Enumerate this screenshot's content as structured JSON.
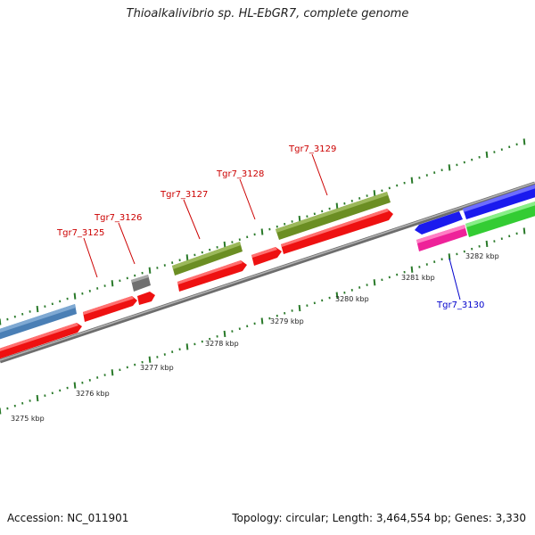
{
  "title": "Thioalkalivibrio sp. HL-EbGR7, complete genome",
  "footer": {
    "accession": "Accession: NC_011901",
    "topology": "Topology: circular; Length: 3,464,554 bp; Genes: 3,330"
  },
  "ruler": {
    "unit": "kbp",
    "ticks": [
      {
        "label": "3275 kbp",
        "kbp": 3275
      },
      {
        "label": "3276 kbp",
        "kbp": 3276
      },
      {
        "label": "3277 kbp",
        "kbp": 3277
      },
      {
        "label": "3278 kbp",
        "kbp": 3278
      },
      {
        "label": "3279 kbp",
        "kbp": 3279
      },
      {
        "label": "3280 kbp",
        "kbp": 3280
      },
      {
        "label": "3281 kbp",
        "kbp": 3281
      },
      {
        "label": "3282 kbp",
        "kbp": 3282
      }
    ]
  },
  "colors": {
    "backbone": "#8a8a8a",
    "cds": "#ee1111",
    "operon": "#6b8e23",
    "blue_track": "#1a1aee",
    "steel_track": "#4a7fb5",
    "rna_gray": "#707070",
    "magenta": "#ee2299",
    "green_track": "#33cc33",
    "tick": "#2a7a2a",
    "label_red": "#cc0000",
    "label_blue": "#0000cc"
  },
  "genes": [
    {
      "label": "Tgr7_3125",
      "color": "#cc0000"
    },
    {
      "label": "Tgr7_3126",
      "color": "#cc0000"
    },
    {
      "label": "Tgr7_3127",
      "color": "#cc0000"
    },
    {
      "label": "Tgr7_3128",
      "color": "#cc0000"
    },
    {
      "label": "Tgr7_3129",
      "color": "#cc0000"
    },
    {
      "label": "Tgr7_3130",
      "color": "#0000cc"
    }
  ]
}
